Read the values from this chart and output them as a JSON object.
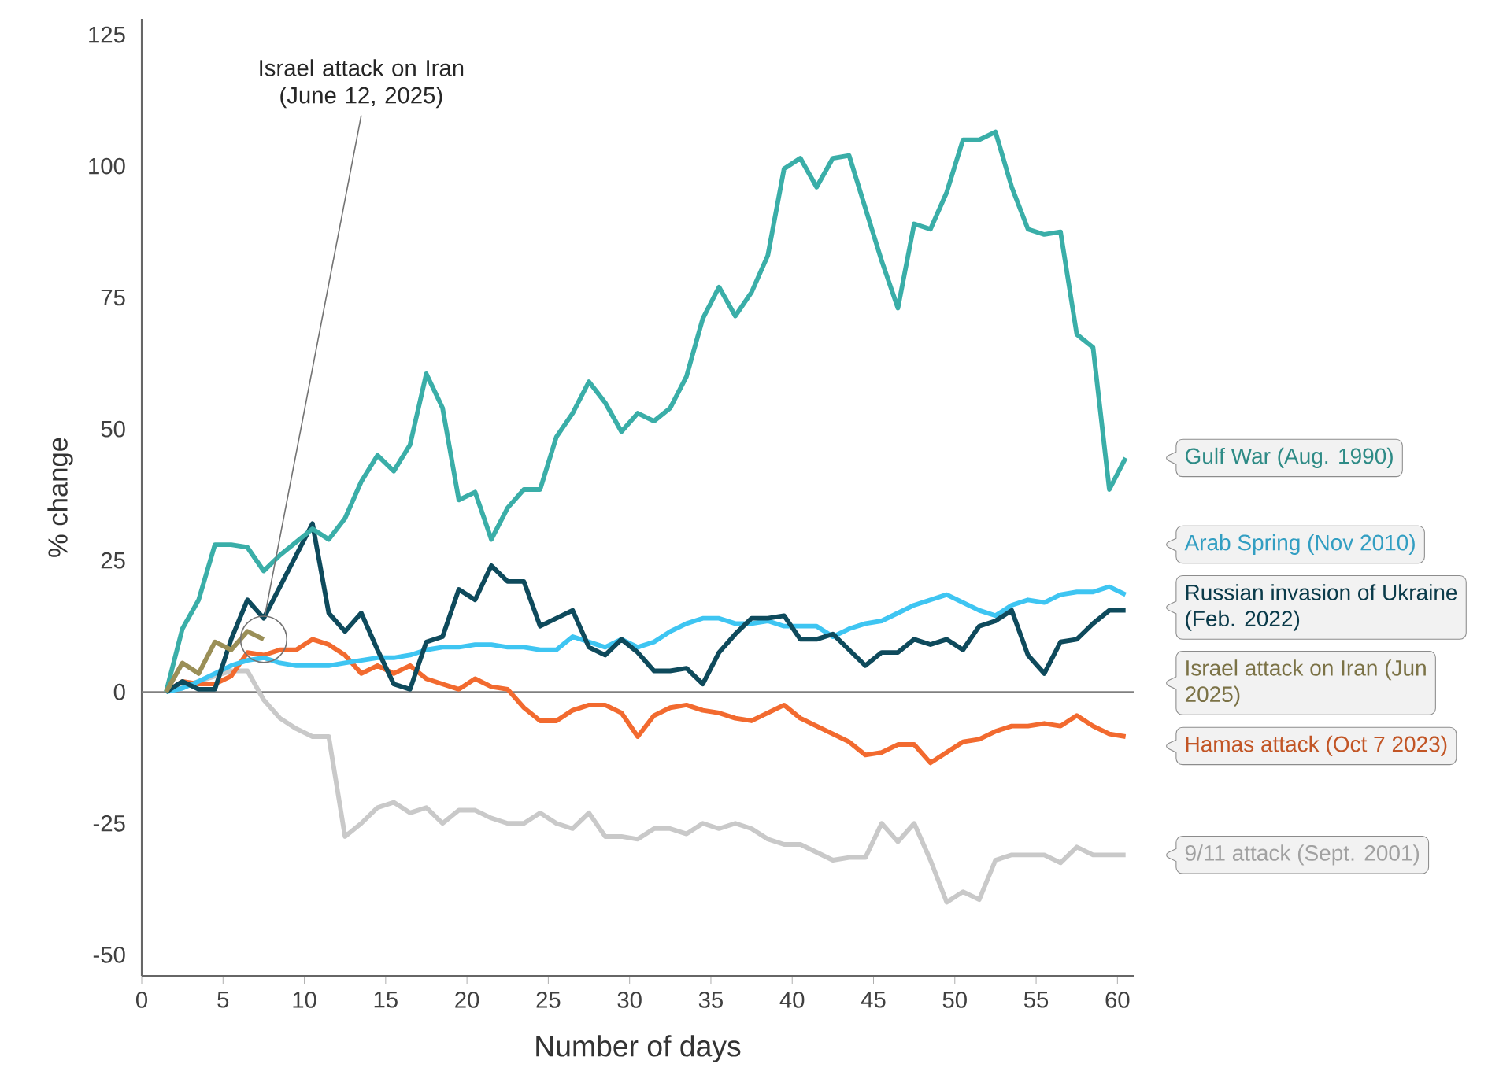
{
  "chart_data": {
    "type": "line",
    "xlabel": "Number of days",
    "ylabel": "% change",
    "x": [
      1.5,
      2.5,
      3.5,
      4.5,
      5.5,
      6.5,
      7.5,
      8.5,
      9.5,
      10.5,
      11.5,
      12.5,
      13.5,
      14.5,
      15.5,
      16.5,
      17.5,
      18.5,
      19.5,
      20.5,
      21.5,
      22.5,
      23.5,
      24.5,
      25.5,
      26.5,
      27.5,
      28.5,
      29.5,
      30.5,
      31.5,
      32.5,
      33.5,
      34.5,
      35.5,
      36.5,
      37.5,
      38.5,
      39.5,
      40.5,
      41.5,
      42.5,
      43.5,
      44.5,
      45.5,
      46.5,
      47.5,
      48.5,
      49.5,
      50.5,
      51.5,
      52.5,
      53.5,
      54.5,
      55.5,
      56.5,
      57.5,
      58.5,
      59.5,
      60.5
    ],
    "series": [
      {
        "name": "9/11 attack (Sept. 2001)",
        "color": "#c9c9c9",
        "values": [
          0,
          1,
          2,
          3,
          4,
          4,
          -1.5,
          -5,
          -7,
          -8.5,
          -8.5,
          -27.5,
          -25,
          -22,
          -21,
          -23,
          -22,
          -25,
          -22.5,
          -22.5,
          -24,
          -25,
          -25,
          -23,
          -25,
          -26,
          -23,
          -27.5,
          -27.5,
          -28,
          -26,
          -26,
          -27,
          -25,
          -26,
          -25,
          -26,
          -28,
          -29,
          -29,
          -30.5,
          -32,
          -31.5,
          -31.5,
          -25,
          -28.5,
          -25,
          -32,
          -40,
          -38,
          -39.5,
          -32,
          -31,
          -31,
          -31,
          -32.5,
          -29.5,
          -31,
          -31,
          -31
        ]
      },
      {
        "name": "Hamas attack (Oct 7 2023)",
        "color": "#f26a2f",
        "values": [
          0,
          2,
          1.5,
          1.5,
          3,
          7.5,
          7,
          8,
          8,
          10,
          9,
          7,
          3.5,
          5,
          3.5,
          5,
          2.5,
          1.5,
          0.5,
          2.5,
          1,
          0.5,
          -3,
          -5.5,
          -5.5,
          -3.5,
          -2.5,
          -2.5,
          -4,
          -8.5,
          -4.5,
          -3,
          -2.5,
          -3.5,
          -4,
          -5,
          -5.5,
          -4,
          -2.5,
          -5,
          -6.5,
          -8,
          -9.5,
          -12,
          -11.5,
          -10,
          -10,
          -13.5,
          -11.5,
          -9.5,
          -9,
          -7.5,
          -6.5,
          -6.5,
          -6,
          -6.5,
          -4.5,
          -6.5,
          -8,
          -8.5
        ]
      },
      {
        "name": "Arab Spring (Nov 2010)",
        "color": "#3ec5f2",
        "values": [
          0,
          0.7,
          2,
          3.5,
          5,
          6,
          6.5,
          5.5,
          5,
          5,
          5,
          5.5,
          6,
          6.5,
          6.5,
          7,
          8,
          8.5,
          8.5,
          9,
          9,
          8.5,
          8.5,
          8,
          8,
          10.5,
          9.5,
          8.5,
          10,
          8.5,
          9.5,
          11.5,
          13,
          14,
          14,
          13,
          13,
          13.5,
          12.5,
          12.5,
          12.5,
          10.5,
          12,
          13,
          13.5,
          15,
          16.5,
          17.5,
          18.5,
          17,
          15.5,
          14.5,
          16.5,
          17.5,
          17,
          18.5,
          19,
          19,
          20,
          18.5
        ]
      },
      {
        "name": "Russian invasion of Ukraine (Feb. 2022)",
        "color": "#0e4a5c",
        "values": [
          0,
          2,
          0.5,
          0.5,
          10,
          17.5,
          14,
          20,
          26,
          32,
          15,
          11.5,
          15,
          8,
          1.5,
          0.5,
          9.5,
          10.5,
          19.5,
          17.5,
          24,
          21,
          21,
          12.5,
          14,
          15.5,
          8.5,
          7,
          10,
          7.5,
          4,
          4,
          4.5,
          1.5,
          7.5,
          11,
          14,
          14,
          14.5,
          10,
          10,
          11,
          8,
          5,
          7.5,
          7.5,
          10,
          9,
          10,
          8,
          12.5,
          13.5,
          15.5,
          7,
          3.5,
          9.5,
          10,
          13,
          15.5,
          15.5
        ]
      },
      {
        "name": "Gulf War (Aug. 1990)",
        "color": "#3aaea8",
        "values": [
          0,
          12,
          17.5,
          28,
          28,
          27.5,
          23,
          26,
          28.5,
          31,
          29,
          33,
          40,
          45,
          42,
          47,
          60.5,
          54,
          36.5,
          38,
          29,
          35,
          38.5,
          38.5,
          48.5,
          53,
          59,
          55,
          49.5,
          53,
          51.5,
          54,
          60,
          71,
          77,
          71.5,
          76,
          83,
          99.5,
          101.5,
          96,
          101.5,
          102,
          92,
          82,
          73,
          89,
          88,
          95,
          105,
          105,
          106.5,
          96,
          88,
          87,
          87.5,
          68,
          65.5,
          38.5,
          44.5
        ]
      },
      {
        "name": "Israel attack on Iran (Jun 2025)",
        "color": "#9a8f57",
        "x": [
          1.5,
          2.5,
          3.5,
          4.5,
          5.5,
          6.5,
          7.5
        ],
        "values": [
          0,
          5.5,
          3.5,
          9.5,
          8,
          11.5,
          10
        ]
      }
    ],
    "xlim": [
      0,
      61
    ],
    "ylim": [
      -54,
      128
    ],
    "xticks": [
      0,
      5,
      10,
      15,
      20,
      25,
      30,
      35,
      40,
      45,
      50,
      55,
      60
    ],
    "yticks": [
      -50,
      -25,
      0,
      25,
      50,
      75,
      100,
      125
    ],
    "ref_lines": [
      {
        "axis": "y",
        "value": 0,
        "color": "#808080"
      }
    ],
    "annotations": [
      "Israel attack on Iran (June 12, 2025)"
    ],
    "marker": "none"
  }
}
